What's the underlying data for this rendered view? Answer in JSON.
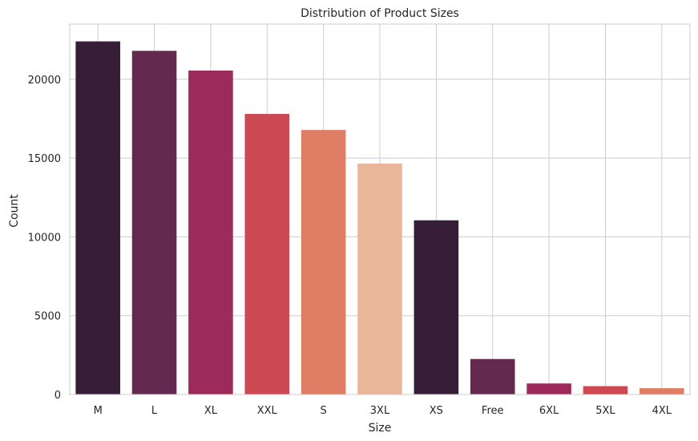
{
  "chart_data": {
    "type": "bar",
    "title": "Distribution of Product Sizes",
    "xlabel": "Size",
    "ylabel": "Count",
    "categories": [
      "M",
      "L",
      "XL",
      "XXL",
      "S",
      "3XL",
      "XS",
      "Free",
      "6XL",
      "5XL",
      "4XL"
    ],
    "values": [
      22400,
      21800,
      20550,
      17800,
      16780,
      14650,
      11050,
      2250,
      700,
      530,
      400
    ],
    "colors": [
      "#351e36",
      "#65284f",
      "#9c2a5b",
      "#cc4954",
      "#e07e65",
      "#e9b699",
      "#351e36",
      "#65284f",
      "#9c2a5b",
      "#cc4954",
      "#e07e65"
    ],
    "ylim": [
      0,
      23500
    ],
    "yticks": [
      0,
      5000,
      10000,
      15000,
      20000
    ],
    "grid": true,
    "grid_color": "#cccccc",
    "background": "#ffffff"
  }
}
